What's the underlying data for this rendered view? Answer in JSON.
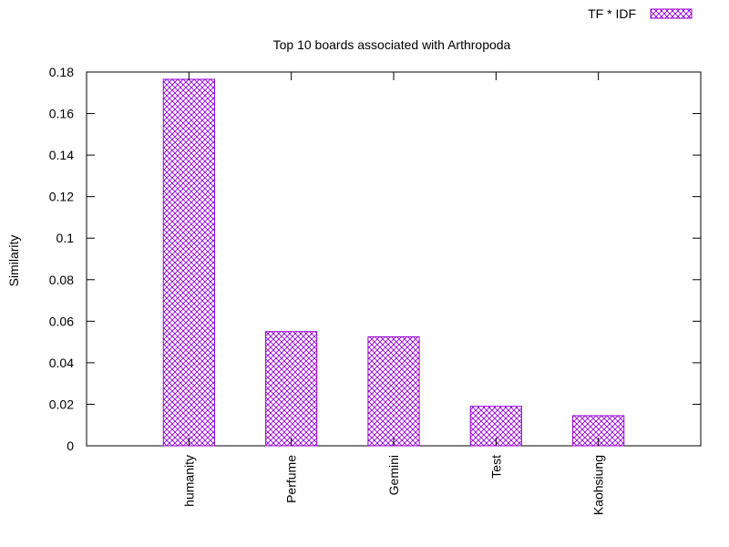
{
  "chart_data": {
    "type": "bar",
    "title": "Top 10 boards associated with Arthropoda",
    "xlabel": "",
    "ylabel": "Similarity",
    "ylim": [
      0,
      0.18
    ],
    "yticks": [
      "0",
      "0.02",
      "0.04",
      "0.06",
      "0.08",
      "0.1",
      "0.12",
      "0.14",
      "0.16",
      "0.18"
    ],
    "categories": [
      "humanity",
      "Perfume",
      "Gemini",
      "Test",
      "Kaohsiung"
    ],
    "series": [
      {
        "name": "TF * IDF",
        "values": [
          0.1765,
          0.055,
          0.0525,
          0.019,
          0.0145
        ]
      }
    ],
    "legend_position": "top-right",
    "grid": false,
    "bar_color": "#9400d3"
  }
}
